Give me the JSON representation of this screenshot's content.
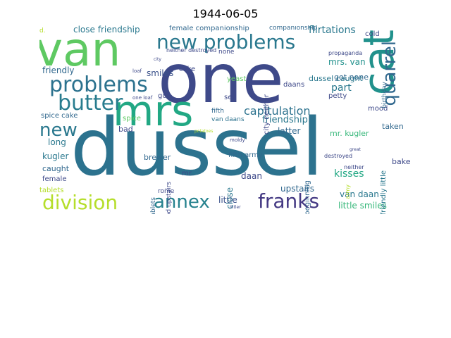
{
  "title": "1944-06-05",
  "colors": {
    "lime": "#b5de2b",
    "green": "#6ece58",
    "seagreen": "#35b779",
    "teal": "#1f9e89",
    "cyan": "#26828e",
    "blue": "#31688e",
    "indigo": "#3e4989",
    "purple": "#482878",
    "darkpurple": "#440154"
  },
  "words": [
    {
      "text": "dussel",
      "color": "#2c728e",
      "rot": 0
    },
    {
      "text": "one",
      "color": "#3e4989",
      "rot": 0
    },
    {
      "text": "van",
      "color": "#5ec962",
      "rot": 0
    },
    {
      "text": "mrs",
      "color": "#22a884",
      "rot": 0
    },
    {
      "text": "cat",
      "color": "#21918c",
      "rot": 270
    },
    {
      "text": "new problems",
      "color": "#2a788e",
      "rot": 0
    },
    {
      "text": "problems",
      "color": "#2c728e",
      "rot": 0
    },
    {
      "text": "butter",
      "color": "#287c8e",
      "rot": 0
    },
    {
      "text": "quarrel",
      "color": "#31688e",
      "rot": 270
    },
    {
      "text": "division",
      "color": "#b5de2b",
      "rot": 0
    },
    {
      "text": "annex",
      "color": "#26828e",
      "rot": 0
    },
    {
      "text": "franks",
      "color": "#443983",
      "rot": 0
    },
    {
      "text": "new",
      "color": "#2a788e",
      "rot": 0
    },
    {
      "text": "capitulation",
      "color": "#2c728e",
      "rot": 0
    },
    {
      "text": "close friendship",
      "color": "#2a788e",
      "rot": 0
    },
    {
      "text": "female companionship",
      "color": "#31688e",
      "rot": 0
    },
    {
      "text": "companionship",
      "color": "#31688e",
      "rot": 0
    },
    {
      "text": "flirtations",
      "color": "#2a788e",
      "rot": 0
    },
    {
      "text": "cold",
      "color": "#3e4989",
      "rot": 0
    },
    {
      "text": "mrs. van",
      "color": "#21918c",
      "rot": 0
    },
    {
      "text": "friendly",
      "color": "#31688e",
      "rot": 0
    },
    {
      "text": "smiles",
      "color": "#3b528b",
      "rot": 0
    },
    {
      "text": "friendship",
      "color": "#2a788e",
      "rot": 0
    },
    {
      "text": "part",
      "color": "#2a788e",
      "rot": 0
    },
    {
      "text": "latter",
      "color": "#31688e",
      "rot": 0
    },
    {
      "text": "mr. kugler",
      "color": "#35b779",
      "rot": 0
    },
    {
      "text": "little smiles",
      "color": "#35b779",
      "rot": 0
    },
    {
      "text": "van daan",
      "color": "#2a788e",
      "rot": 0
    },
    {
      "text": "upstairs",
      "color": "#31688e",
      "rot": 0
    },
    {
      "text": "kisses",
      "color": "#22a884",
      "rot": 0
    },
    {
      "text": "little",
      "color": "#3b528b",
      "rot": 0
    },
    {
      "text": "daan",
      "color": "#3e4989",
      "rot": 0
    },
    {
      "text": "close",
      "color": "#2a788e",
      "rot": 270
    },
    {
      "text": "fifth army",
      "color": "#31688e",
      "rot": 0
    },
    {
      "text": "van daans",
      "color": "#2c728e",
      "rot": 0
    },
    {
      "text": "fifth",
      "color": "#31688e",
      "rot": 0
    },
    {
      "text": "mood",
      "color": "#3e4989",
      "rot": 0
    },
    {
      "text": "taken",
      "color": "#31688e",
      "rot": 0
    },
    {
      "text": "bake",
      "color": "#3e4989",
      "rot": 0
    },
    {
      "text": "long",
      "color": "#2a788e",
      "rot": 0
    },
    {
      "text": "kugler",
      "color": "#2a788e",
      "rot": 0
    },
    {
      "text": "caught",
      "color": "#31688e",
      "rot": 0
    },
    {
      "text": "female",
      "color": "#3e4989",
      "rot": 0
    },
    {
      "text": "tablets",
      "color": "#b5de2b",
      "rot": 0
    },
    {
      "text": "spice cake",
      "color": "#31688e",
      "rot": 0
    },
    {
      "text": "bad",
      "color": "#3e4989",
      "rot": 0
    },
    {
      "text": "spice",
      "color": "#5ec962",
      "rot": 0
    },
    {
      "text": "brewer",
      "color": "#31688e",
      "rot": 0
    },
    {
      "text": "cake",
      "color": "#3e4989",
      "rot": 0
    },
    {
      "text": "got",
      "color": "#3e4989",
      "rot": 0
    },
    {
      "text": "yeast",
      "color": "#5ec962",
      "rot": 0
    },
    {
      "text": "see",
      "color": "#3e4989",
      "rot": 0
    },
    {
      "text": "daans",
      "color": "#3e4989",
      "rot": 0
    },
    {
      "text": "dussel caught",
      "color": "#2a788e",
      "rot": 0
    },
    {
      "text": "got none",
      "color": "#31688e",
      "rot": 0
    },
    {
      "text": "petty",
      "color": "#3e4989",
      "rot": 0
    },
    {
      "text": "none",
      "color": "#3e4989",
      "rot": 0
    },
    {
      "text": "mr.",
      "color": "#3e4989",
      "rot": 0
    },
    {
      "text": "rome",
      "color": "#3e4989",
      "rot": 0
    },
    {
      "text": "beginning",
      "color": "#31688e",
      "rot": 270
    },
    {
      "text": "city neither",
      "color": "#3e4989",
      "rot": 270
    },
    {
      "text": "friendly little",
      "color": "#2a788e",
      "rot": 270
    },
    {
      "text": "birthday",
      "color": "#31688e",
      "rot": 270
    },
    {
      "text": "yeast tablets",
      "color": "#31688e",
      "rot": 270
    },
    {
      "text": "mood upstairs",
      "color": "#3e4989",
      "rot": 270
    },
    {
      "text": "one loaf",
      "color": "#3e4989",
      "rot": 0
    },
    {
      "text": "neither destroyed",
      "color": "#3e4989",
      "rot": 0
    },
    {
      "text": "loaf",
      "color": "#3e4989",
      "rot": 0
    },
    {
      "text": "propaganda",
      "color": "#3e4989",
      "rot": 0
    },
    {
      "text": "army",
      "color": "#b5de2b",
      "rot": 270
    },
    {
      "text": "destroyed",
      "color": "#3e4989",
      "rot": 0
    },
    {
      "text": "neither",
      "color": "#3e4989",
      "rot": 0
    },
    {
      "text": "moldy",
      "color": "#3e4989",
      "rot": 0
    },
    {
      "text": "potatoes",
      "color": "#b5de2b",
      "rot": 0
    },
    {
      "text": "great",
      "color": "#3e4989",
      "rot": 0
    },
    {
      "text": "hitler",
      "color": "#3e4989",
      "rot": 0
    },
    {
      "text": "city",
      "color": "#3e4989",
      "rot": 0
    },
    {
      "text": "d.",
      "color": "#b5de2b",
      "rot": 0
    }
  ]
}
